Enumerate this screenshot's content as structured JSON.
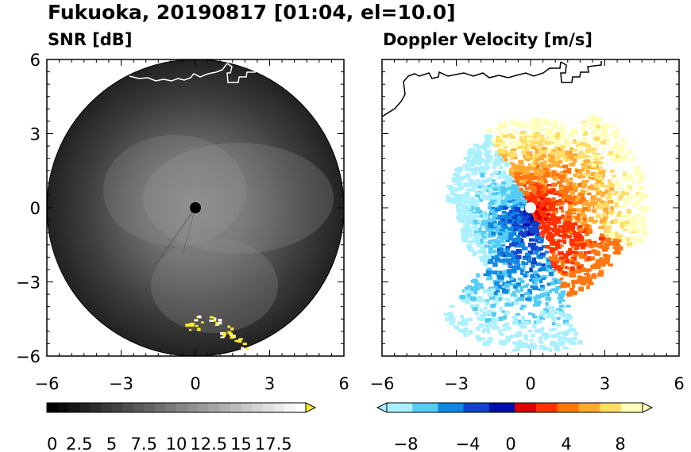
{
  "title": "Fukuoka, 20190817 [01:04, el=10.0]",
  "chart_data": [
    {
      "type": "heatmap",
      "title": "SNR [dB]",
      "xlim": [
        -6,
        6
      ],
      "ylim": [
        -6,
        6
      ],
      "xticks": [
        "−6",
        "−3",
        "0",
        "3",
        "6"
      ],
      "yticks": [
        "6",
        "3",
        "0",
        "−3",
        "−6"
      ],
      "radar_range": 6,
      "radar_center": [
        0,
        0
      ],
      "colorbar": {
        "labels": [
          "0",
          "2.5",
          "5",
          "7.5",
          "10",
          "12.5",
          "15",
          "17.5"
        ],
        "levels": 24,
        "colors": [
          "#000000",
          "#ffffff"
        ],
        "extend": "max",
        "extend_color": "#ffee22"
      },
      "high_echo_color": "#ffee22"
    },
    {
      "type": "heatmap",
      "title": "Doppler Velocity [m/s]",
      "xlim": [
        -6,
        6
      ],
      "ylim": [
        -6,
        6
      ],
      "xticks": [
        "−6",
        "−3",
        "0",
        "3",
        "6"
      ],
      "radar_center": [
        0,
        0
      ],
      "colorbar": {
        "labels": [
          "−8",
          "−4",
          "0",
          "4",
          "8"
        ],
        "colors_negative": [
          "#aaf0ff",
          "#55ccf4",
          "#1188e0",
          "#1144cc",
          "#0011aa"
        ],
        "colors_positive": [
          "#dd0000",
          "#ff3300",
          "#ff7711",
          "#ffaa33",
          "#ffdd66",
          "#ffffbb"
        ],
        "extend": "both"
      }
    }
  ]
}
